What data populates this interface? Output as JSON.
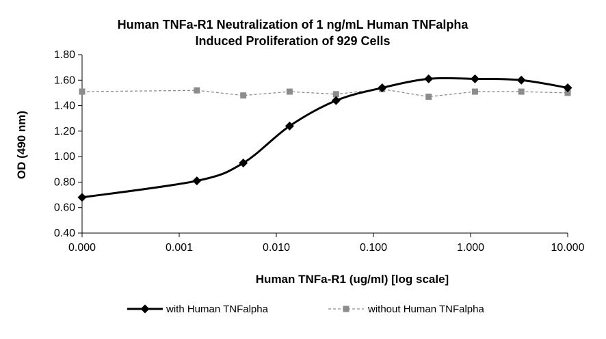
{
  "chart_data": {
    "type": "line",
    "title": "Human TNFa-R1 Neutralization of 1 ng/mL Human TNFalpha",
    "subtitle": "Induced Proliferation of 929 Cells",
    "xlabel": "Human TNFa-R1 (ug/ml) [log scale]",
    "ylabel": "OD (490 nm)",
    "x_scale": "log",
    "x_tick_labels": [
      "0.000",
      "0.001",
      "0.010",
      "0.100",
      "1.000",
      "10.000"
    ],
    "x_tick_values": [
      0.0001,
      0.001,
      0.01,
      0.1,
      1,
      10
    ],
    "ylim": [
      0.4,
      1.8
    ],
    "y_ticks": [
      0.4,
      0.6,
      0.8,
      1.0,
      1.2,
      1.4,
      1.6,
      1.8
    ],
    "y_tick_labels": [
      "0.40",
      "0.60",
      "0.80",
      "1.00",
      "1.20",
      "1.40",
      "1.60",
      "1.80"
    ],
    "grid": false,
    "legend_position": "bottom",
    "series": [
      {
        "name": "with Human TNFalpha",
        "color": "#000000",
        "marker": "diamond",
        "line_style": "solid",
        "x": [
          0.0001,
          0.00152,
          0.00457,
          0.0137,
          0.0412,
          0.123,
          0.37,
          1.11,
          3.33,
          10
        ],
        "y": [
          0.68,
          0.81,
          0.95,
          1.24,
          1.44,
          1.54,
          1.61,
          1.61,
          1.6,
          1.54
        ]
      },
      {
        "name": "without Human TNFalpha",
        "color": "#8c8c8c",
        "marker": "square",
        "line_style": "dashed",
        "x": [
          0.0001,
          0.00152,
          0.00457,
          0.0137,
          0.0412,
          0.123,
          0.37,
          1.11,
          3.33,
          10
        ],
        "y": [
          1.51,
          1.52,
          1.48,
          1.51,
          1.49,
          1.53,
          1.47,
          1.51,
          1.51,
          1.5
        ]
      }
    ]
  }
}
